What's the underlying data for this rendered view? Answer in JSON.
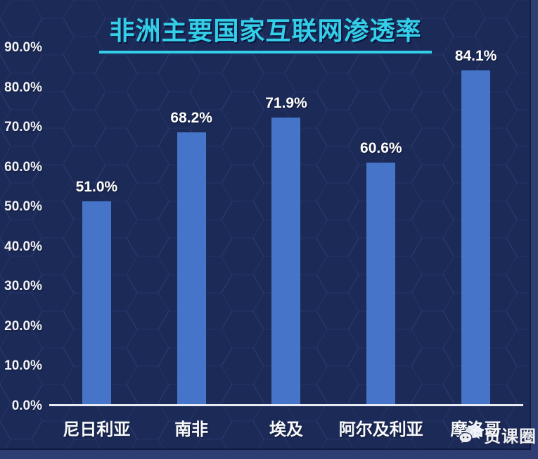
{
  "title": "非洲主要国家互联网渗透率",
  "chart_data": {
    "type": "bar",
    "title": "非洲主要国家互联网渗透率",
    "categories": [
      "尼日利亚",
      "南非",
      "埃及",
      "阿尔及利亚",
      "摩洛哥"
    ],
    "values": [
      51.0,
      68.2,
      71.9,
      60.6,
      84.1
    ],
    "data_labels": [
      "51.0%",
      "68.2%",
      "71.9%",
      "60.6%",
      "84.1%"
    ],
    "xlabel": "",
    "ylabel": "",
    "ylim": [
      0,
      90
    ],
    "y_ticks": [
      "0.0%",
      "10.0%",
      "20.0%",
      "30.0%",
      "40.0%",
      "50.0%",
      "60.0%",
      "70.0%",
      "80.0%",
      "90.0%"
    ],
    "grid": false,
    "legend": false,
    "colors": {
      "bar": "#4674c8",
      "background": "#1c2a58",
      "title": "#33cfe8",
      "axis_line": "#e9ebf2",
      "text": "#f7f9fc"
    }
  },
  "watermark": {
    "text": "贸课圈",
    "icon": "chat-bubbles-icon"
  }
}
